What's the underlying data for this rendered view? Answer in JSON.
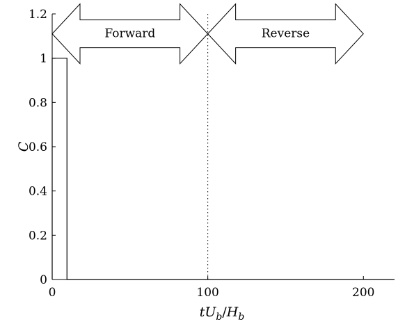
{
  "chart_data": {
    "type": "line",
    "title": "",
    "xlabel_parts": [
      {
        "text": "tU",
        "italic": true,
        "sub": false
      },
      {
        "text": "b",
        "italic": true,
        "sub": true
      },
      {
        "text": "/",
        "italic": false,
        "sub": false
      },
      {
        "text": "H",
        "italic": true,
        "sub": false
      },
      {
        "text": "b",
        "italic": true,
        "sub": true
      }
    ],
    "ylabel": "C",
    "xlim": [
      0,
      220
    ],
    "ylim": [
      0,
      1.2
    ],
    "xticks": [
      0,
      100,
      200
    ],
    "xtick_labels": [
      "0",
      "100",
      "200"
    ],
    "yticks": [
      0,
      0.2,
      0.4,
      0.6,
      0.8,
      1,
      1.2
    ],
    "ytick_labels": [
      "0",
      "0.2",
      "0.4",
      "0.6",
      "0.8",
      "1",
      "1.2"
    ],
    "series": [
      {
        "x": [
          0,
          0,
          9.5,
          9.5,
          220
        ],
        "y": [
          0,
          1,
          1,
          0,
          0
        ],
        "color": "#000000",
        "style": "solid"
      }
    ],
    "reference_line": {
      "x": 100,
      "style": "dotted"
    },
    "annotations": [
      {
        "text": "Forward",
        "x_from": 0,
        "x_to": 100,
        "y": 1.11
      },
      {
        "text": "Reverse",
        "x_from": 100,
        "x_to": 200,
        "y": 1.11
      }
    ],
    "grid": false
  }
}
